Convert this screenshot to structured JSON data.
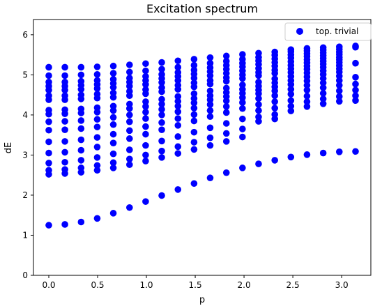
{
  "chart_data": {
    "type": "scatter",
    "title": "Excitation spectrum",
    "xlabel": "p",
    "ylabel": "dE",
    "xlim": [
      -0.157,
      3.299
    ],
    "ylim": [
      0,
      6.38
    ],
    "xticks": [
      0.0,
      0.5,
      1.0,
      1.5,
      2.0,
      2.5,
      3.0
    ],
    "xtick_labels": [
      "0.0",
      "0.5",
      "1.0",
      "1.5",
      "2.0",
      "2.5",
      "3.0"
    ],
    "yticks": [
      0,
      1,
      2,
      3,
      4,
      5,
      6
    ],
    "ytick_labels": [
      "0",
      "1",
      "2",
      "3",
      "4",
      "5",
      "6"
    ],
    "grid": false,
    "legend": {
      "position": "top-right",
      "entries": [
        "top. trivial"
      ]
    },
    "series": [
      {
        "name": "top. trivial",
        "color": "#0000ff",
        "marker": "circle",
        "x": [
          0.0,
          0.165,
          0.331,
          0.496,
          0.661,
          0.827,
          0.992,
          1.157,
          1.323,
          1.488,
          1.653,
          1.819,
          1.984,
          2.149,
          2.315,
          2.48,
          2.645,
          2.811,
          2.976,
          3.142
        ],
        "columns": [
          [
            1.25,
            2.52,
            2.62,
            2.8,
            3.05,
            3.33,
            3.62,
            3.83,
            4.02,
            4.12,
            4.38,
            4.48,
            4.62,
            4.72,
            4.82,
            4.98,
            5.19
          ],
          [
            1.27,
            2.54,
            2.64,
            2.82,
            3.07,
            3.34,
            3.63,
            3.84,
            4.03,
            4.13,
            4.38,
            4.48,
            4.62,
            4.72,
            4.82,
            4.98,
            5.19
          ],
          [
            1.33,
            2.57,
            2.68,
            2.87,
            3.12,
            3.38,
            3.66,
            3.86,
            4.05,
            4.15,
            4.4,
            4.5,
            4.64,
            4.74,
            4.84,
            5.0,
            5.19
          ],
          [
            1.42,
            2.62,
            2.74,
            2.94,
            3.2,
            3.44,
            3.7,
            3.89,
            4.07,
            4.18,
            4.42,
            4.52,
            4.66,
            4.76,
            4.86,
            5.01,
            5.2
          ],
          [
            1.55,
            2.68,
            2.81,
            3.03,
            3.3,
            3.52,
            3.76,
            3.94,
            4.11,
            4.22,
            4.44,
            4.55,
            4.69,
            4.79,
            4.89,
            5.04,
            5.22
          ],
          [
            1.69,
            2.76,
            2.9,
            3.13,
            3.41,
            3.61,
            3.83,
            4.0,
            4.16,
            4.27,
            4.48,
            4.59,
            4.72,
            4.82,
            4.92,
            5.07,
            5.25
          ],
          [
            1.84,
            2.85,
            3.0,
            3.24,
            3.52,
            3.71,
            3.91,
            4.07,
            4.21,
            4.33,
            4.53,
            4.63,
            4.76,
            4.86,
            4.96,
            5.1,
            5.28
          ],
          [
            1.99,
            2.94,
            3.1,
            3.35,
            3.63,
            3.81,
            4.0,
            4.14,
            4.27,
            4.39,
            4.58,
            4.68,
            4.81,
            4.91,
            5.01,
            5.14,
            5.31
          ],
          [
            2.14,
            3.04,
            3.21,
            3.46,
            3.74,
            3.91,
            4.08,
            4.22,
            4.34,
            4.46,
            4.64,
            4.74,
            4.86,
            4.96,
            5.06,
            5.19,
            5.35
          ],
          [
            2.29,
            3.14,
            3.32,
            3.57,
            3.85,
            4.01,
            4.17,
            4.3,
            4.41,
            4.53,
            4.7,
            4.8,
            4.92,
            5.02,
            5.12,
            5.24,
            5.39
          ],
          [
            2.43,
            3.24,
            3.43,
            3.68,
            3.96,
            4.11,
            4.26,
            4.38,
            4.48,
            4.6,
            4.77,
            4.86,
            4.98,
            5.08,
            5.18,
            5.29,
            5.43
          ],
          [
            2.56,
            3.34,
            3.54,
            3.79,
            4.06,
            4.21,
            4.35,
            4.46,
            4.56,
            4.67,
            4.84,
            4.93,
            5.04,
            5.14,
            5.24,
            5.34,
            5.47
          ],
          [
            2.68,
            3.45,
            3.65,
            3.9,
            4.16,
            4.31,
            4.43,
            4.54,
            4.64,
            4.75,
            4.91,
            5.0,
            5.1,
            5.2,
            5.29,
            5.39,
            5.51
          ],
          [
            2.78,
            3.84,
            3.95,
            4.11,
            4.26,
            4.41,
            4.53,
            4.62,
            4.72,
            4.82,
            4.98,
            5.06,
            5.16,
            5.26,
            5.35,
            5.44,
            5.54
          ],
          [
            2.87,
            3.9,
            4.01,
            4.17,
            4.33,
            4.48,
            4.6,
            4.7,
            4.8,
            4.9,
            5.04,
            5.12,
            5.22,
            5.31,
            5.4,
            5.49,
            5.57
          ],
          [
            2.95,
            4.1,
            4.22,
            4.36,
            4.52,
            4.64,
            4.76,
            4.86,
            4.96,
            5.06,
            5.15,
            5.24,
            5.33,
            5.42,
            5.5,
            5.58,
            5.63
          ],
          [
            3.01,
            4.21,
            4.33,
            4.47,
            4.62,
            4.74,
            4.85,
            4.95,
            5.05,
            5.14,
            5.22,
            5.3,
            5.38,
            5.46,
            5.53,
            5.6,
            5.66
          ],
          [
            3.05,
            4.28,
            4.4,
            4.54,
            4.68,
            4.8,
            4.91,
            5.01,
            5.1,
            5.19,
            5.27,
            5.34,
            5.41,
            5.48,
            5.55,
            5.62,
            5.68
          ],
          [
            3.08,
            4.34,
            4.46,
            4.6,
            4.74,
            4.86,
            4.97,
            5.07,
            5.15,
            5.23,
            5.31,
            5.38,
            5.44,
            5.51,
            5.57,
            5.64,
            5.7
          ],
          [
            3.09,
            4.36,
            4.48,
            4.62,
            4.77,
            4.94,
            5.29,
            5.69,
            5.72
          ]
        ]
      }
    ]
  }
}
